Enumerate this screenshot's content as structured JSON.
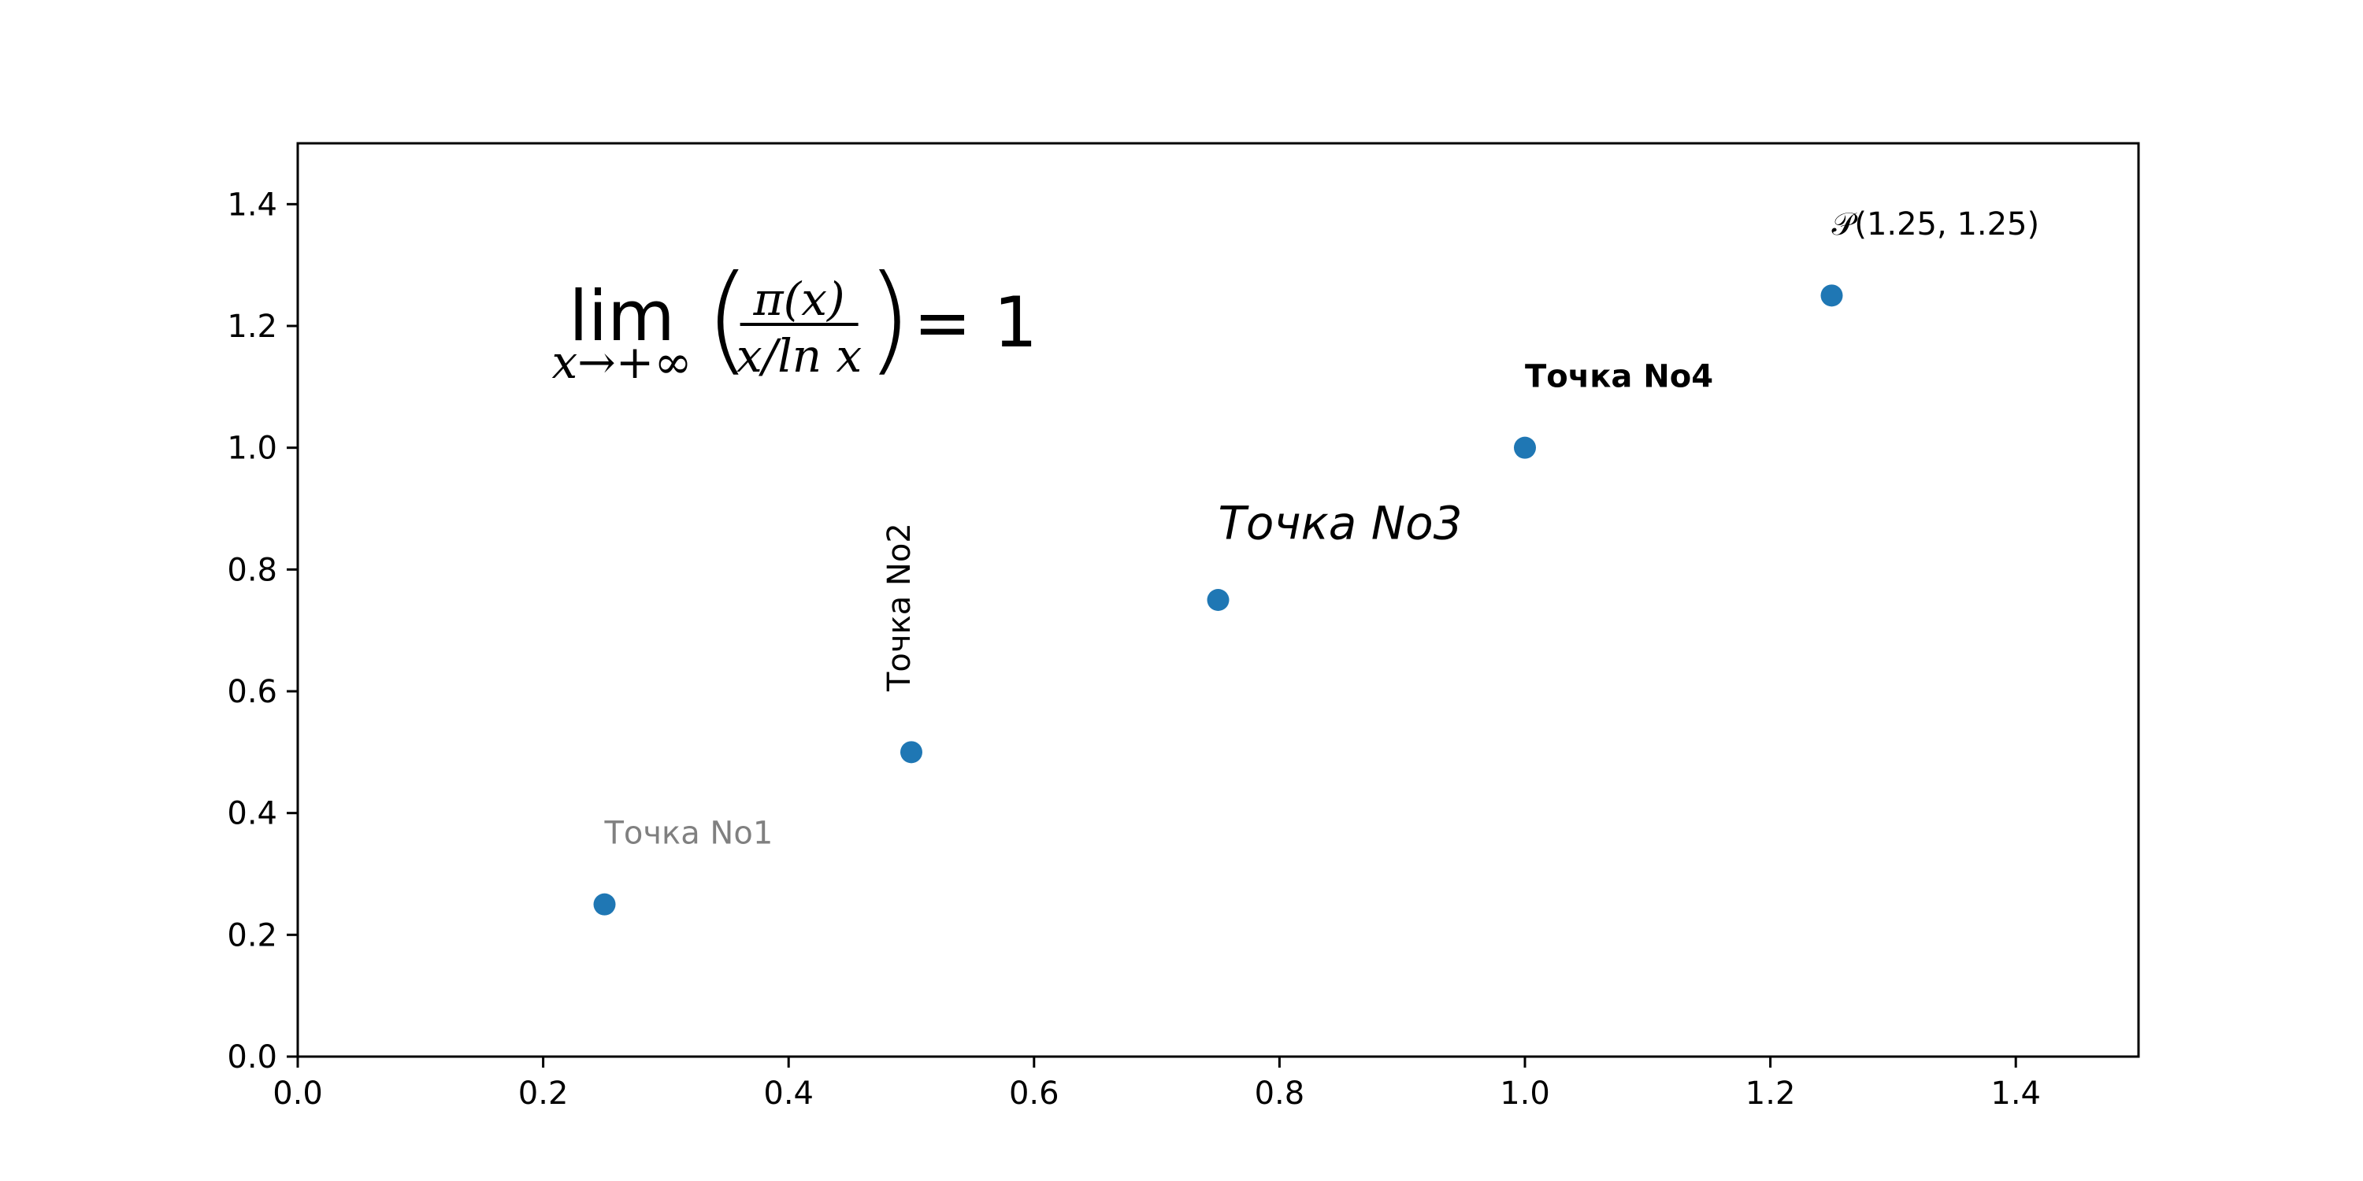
{
  "chart_data": {
    "type": "scatter",
    "x": [
      0.25,
      0.5,
      0.75,
      1.0,
      1.25
    ],
    "y": [
      0.25,
      0.5,
      0.75,
      1.0,
      1.25
    ],
    "xlim": [
      0.0,
      1.5
    ],
    "ylim": [
      0.0,
      1.5
    ],
    "xticks": [
      "0.0",
      "0.2",
      "0.4",
      "0.6",
      "0.8",
      "1.0",
      "1.2",
      "1.4"
    ],
    "yticks": [
      "0.0",
      "0.2",
      "0.4",
      "0.6",
      "0.8",
      "1.0",
      "1.2",
      "1.4"
    ],
    "grid": false,
    "marker_color": "#1f77b4",
    "annotations": [
      {
        "text": "Точка No1",
        "x": 0.25,
        "y": 0.35,
        "color": "#808080",
        "style": "normal",
        "rotation": 0
      },
      {
        "text": "Точка No2",
        "x": 0.5,
        "y": 0.6,
        "color": "#000000",
        "style": "normal",
        "rotation": 90
      },
      {
        "text": "Точка No3",
        "x": 0.75,
        "y": 0.85,
        "color": "#000000",
        "style": "italic",
        "rotation": 0
      },
      {
        "text": "Точка No4",
        "x": 1.0,
        "y": 1.1,
        "color": "#000000",
        "style": "bold",
        "rotation": 0
      },
      {
        "text": "𝒫(1.25, 1.25)",
        "x": 1.25,
        "y": 1.35,
        "color": "#000000",
        "style": "math",
        "rotation": 0
      }
    ],
    "formula": {
      "lim": "lim",
      "subscript": "x→+∞",
      "numerator": "π(x)",
      "denominator": "x/ln x",
      "left_paren": "(",
      "right_paren": ")",
      "rhs": "= 1",
      "x": 0.2,
      "y": 1.2
    }
  }
}
